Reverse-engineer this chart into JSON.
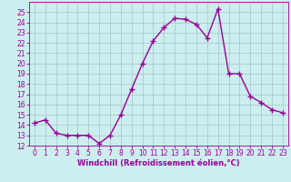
{
  "x": [
    0,
    1,
    2,
    3,
    4,
    5,
    6,
    7,
    8,
    9,
    10,
    11,
    12,
    13,
    14,
    15,
    16,
    17,
    18,
    19,
    20,
    21,
    22,
    23
  ],
  "y": [
    14.2,
    14.5,
    13.2,
    13.0,
    13.0,
    13.0,
    12.2,
    13.0,
    15.0,
    17.5,
    20.0,
    22.2,
    23.5,
    24.4,
    24.3,
    23.8,
    22.5,
    25.3,
    19.0,
    19.0,
    16.8,
    16.2,
    15.5,
    15.2
  ],
  "line_color": "#990099",
  "marker": "+",
  "marker_size": 4,
  "marker_lw": 1.0,
  "bg_color": "#cceeee",
  "grid_color": "#aacccc",
  "xlabel": "Windchill (Refroidissement éolien,°C)",
  "xlabel_color": "#990099",
  "tick_color": "#990099",
  "ylim": [
    12,
    26
  ],
  "yticks": [
    12,
    13,
    14,
    15,
    16,
    17,
    18,
    19,
    20,
    21,
    22,
    23,
    24,
    25
  ],
  "xlim": [
    -0.5,
    23.5
  ],
  "xticks": [
    0,
    1,
    2,
    3,
    4,
    5,
    6,
    7,
    8,
    9,
    10,
    11,
    12,
    13,
    14,
    15,
    16,
    17,
    18,
    19,
    20,
    21,
    22,
    23
  ],
  "linewidth": 1.0,
  "tick_fontsize": 5.5,
  "xlabel_fontsize": 6.0
}
